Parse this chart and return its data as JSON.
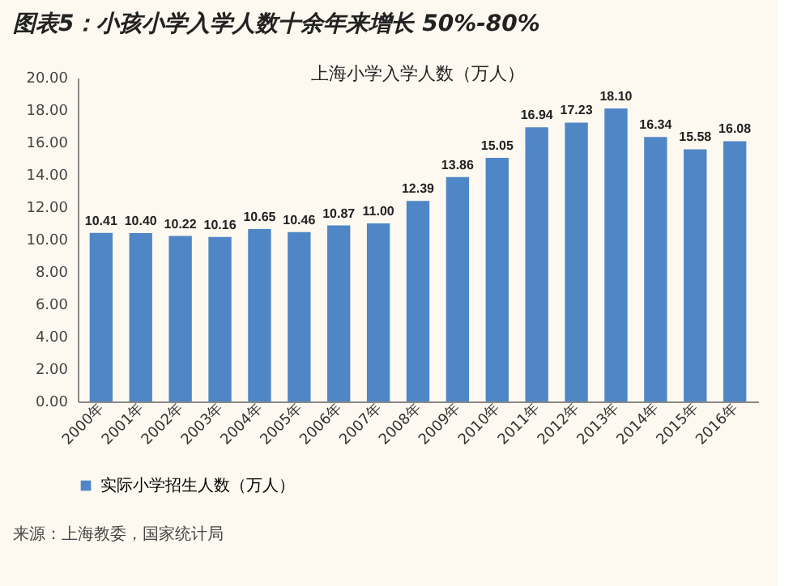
{
  "chart_data": {
    "type": "bar",
    "title": "图表5：小孩小学入学人数十余年来增长 50%-80%",
    "subtitle": "上海小学入学人数（万人）",
    "categories": [
      "2000年",
      "2001年",
      "2002年",
      "2003年",
      "2004年",
      "2005年",
      "2006年",
      "2007年",
      "2008年",
      "2009年",
      "2010年",
      "2011年",
      "2012年",
      "2013年",
      "2014年",
      "2015年",
      "2016年"
    ],
    "series": [
      {
        "name": "实际小学招生人数（万人）",
        "color": "#4f86c6",
        "values": [
          10.41,
          10.4,
          10.22,
          10.16,
          10.65,
          10.46,
          10.87,
          11.0,
          12.39,
          13.86,
          15.05,
          16.94,
          17.23,
          18.1,
          16.34,
          15.58,
          16.08
        ],
        "value_labels": [
          "10.41",
          "10.40",
          "10.22",
          "10.16",
          "10.65",
          "10.46",
          "10.87",
          "11.00",
          "12.39",
          "13.86",
          "15.05",
          "16.94",
          "17.23",
          "18.10",
          "16.34",
          "15.58",
          "16.08"
        ]
      }
    ],
    "ylim": [
      0,
      20
    ],
    "yticks": [
      {
        "value": 0,
        "label": "0.00"
      },
      {
        "value": 2,
        "label": "2.00"
      },
      {
        "value": 4,
        "label": "4.00"
      },
      {
        "value": 6,
        "label": "6.00"
      },
      {
        "value": 8,
        "label": "8.00"
      },
      {
        "value": 10,
        "label": "10.00"
      },
      {
        "value": 12,
        "label": "12.00"
      },
      {
        "value": 14,
        "label": "14.00"
      },
      {
        "value": 16,
        "label": "16.00"
      },
      {
        "value": 18,
        "label": "18.00"
      },
      {
        "value": 20,
        "label": "20.00"
      }
    ],
    "data_labels": true,
    "grid": false,
    "legend": "bottom",
    "annotations": [
      "来源：上海教委，国家统计局"
    ]
  }
}
